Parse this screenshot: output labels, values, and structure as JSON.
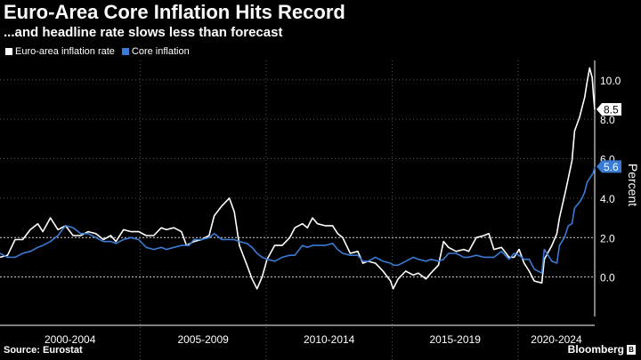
{
  "header": {
    "title": "Euro-Area Core Inflation Hits Record",
    "subtitle": "...and headline rate slows less than forecast"
  },
  "footer": {
    "source": "Source: Eurostat",
    "brand": "Bloomberg"
  },
  "colors": {
    "headline": "#ffffff",
    "core": "#3a7bd5",
    "background": "#000000"
  },
  "chart_data": {
    "type": "line",
    "ylabel": "Percent",
    "ylim": [
      -2.0,
      10.8
    ],
    "yticks": [
      0.0,
      2.0,
      4.0,
      6.0,
      8.0,
      10.0
    ],
    "ytick_labels": [
      "0.0",
      "2.0",
      "4.0",
      "6.0",
      "8.0",
      "10.0"
    ],
    "xlim": [
      1999.4,
      2023.0
    ],
    "x_periods": [
      {
        "label": "2000-2004",
        "start": 1999.4,
        "end": 2004.96
      },
      {
        "label": "2005-2009",
        "start": 2004.96,
        "end": 2009.96
      },
      {
        "label": "2010-2014",
        "start": 2009.96,
        "end": 2014.96
      },
      {
        "label": "2015-2019",
        "start": 2014.96,
        "end": 2019.96
      },
      {
        "label": "2020-2024",
        "start": 2019.96,
        "end": 2023.0
      }
    ],
    "grid": true,
    "legend_position": "top-left",
    "series": [
      {
        "name": "Euro-area inflation rate",
        "color": "#ffffff",
        "last_label": "8.5",
        "points": [
          [
            1999.4,
            1.0
          ],
          [
            1999.7,
            1.1
          ],
          [
            2000.0,
            1.9
          ],
          [
            2000.3,
            1.9
          ],
          [
            2000.6,
            2.4
          ],
          [
            2000.9,
            2.7
          ],
          [
            2001.1,
            2.3
          ],
          [
            2001.4,
            3.0
          ],
          [
            2001.7,
            2.4
          ],
          [
            2002.0,
            2.6
          ],
          [
            2002.3,
            2.1
          ],
          [
            2002.6,
            2.1
          ],
          [
            2002.9,
            2.3
          ],
          [
            2003.2,
            2.2
          ],
          [
            2003.5,
            1.9
          ],
          [
            2003.8,
            2.1
          ],
          [
            2004.0,
            1.8
          ],
          [
            2004.3,
            2.4
          ],
          [
            2004.6,
            2.3
          ],
          [
            2004.9,
            2.3
          ],
          [
            2005.2,
            2.1
          ],
          [
            2005.5,
            2.1
          ],
          [
            2005.8,
            2.5
          ],
          [
            2006.0,
            2.4
          ],
          [
            2006.3,
            2.5
          ],
          [
            2006.6,
            2.3
          ],
          [
            2006.8,
            1.6
          ],
          [
            2007.1,
            1.8
          ],
          [
            2007.4,
            1.9
          ],
          [
            2007.7,
            2.1
          ],
          [
            2007.9,
            3.1
          ],
          [
            2008.2,
            3.6
          ],
          [
            2008.5,
            4.0
          ],
          [
            2008.7,
            3.3
          ],
          [
            2008.9,
            1.6
          ],
          [
            2009.2,
            0.6
          ],
          [
            2009.4,
            -0.1
          ],
          [
            2009.6,
            -0.6
          ],
          [
            2009.8,
            0.0
          ],
          [
            2010.0,
            0.9
          ],
          [
            2010.3,
            1.6
          ],
          [
            2010.6,
            1.6
          ],
          [
            2010.9,
            2.0
          ],
          [
            2011.1,
            2.5
          ],
          [
            2011.4,
            2.7
          ],
          [
            2011.6,
            2.5
          ],
          [
            2011.8,
            3.0
          ],
          [
            2012.0,
            2.7
          ],
          [
            2012.3,
            2.6
          ],
          [
            2012.6,
            2.6
          ],
          [
            2012.8,
            2.2
          ],
          [
            2013.0,
            2.0
          ],
          [
            2013.3,
            1.2
          ],
          [
            2013.6,
            1.3
          ],
          [
            2013.8,
            0.7
          ],
          [
            2014.0,
            0.8
          ],
          [
            2014.3,
            0.7
          ],
          [
            2014.6,
            0.3
          ],
          [
            2014.9,
            -0.2
          ],
          [
            2015.0,
            -0.6
          ],
          [
            2015.2,
            -0.1
          ],
          [
            2015.5,
            0.3
          ],
          [
            2015.8,
            0.1
          ],
          [
            2016.0,
            0.2
          ],
          [
            2016.3,
            -0.1
          ],
          [
            2016.5,
            0.2
          ],
          [
            2016.8,
            0.6
          ],
          [
            2017.0,
            1.8
          ],
          [
            2017.2,
            1.5
          ],
          [
            2017.5,
            1.3
          ],
          [
            2017.8,
            1.4
          ],
          [
            2018.0,
            1.3
          ],
          [
            2018.3,
            2.0
          ],
          [
            2018.6,
            2.1
          ],
          [
            2018.8,
            2.2
          ],
          [
            2019.0,
            1.4
          ],
          [
            2019.3,
            1.5
          ],
          [
            2019.6,
            1.0
          ],
          [
            2019.8,
            1.0
          ],
          [
            2020.0,
            1.4
          ],
          [
            2020.2,
            0.7
          ],
          [
            2020.4,
            0.3
          ],
          [
            2020.6,
            -0.2
          ],
          [
            2020.9,
            -0.3
          ],
          [
            2021.0,
            0.9
          ],
          [
            2021.3,
            1.6
          ],
          [
            2021.5,
            2.2
          ],
          [
            2021.6,
            3.0
          ],
          [
            2021.8,
            4.1
          ],
          [
            2021.95,
            5.0
          ],
          [
            2022.1,
            5.9
          ],
          [
            2022.2,
            7.4
          ],
          [
            2022.4,
            8.1
          ],
          [
            2022.5,
            8.6
          ],
          [
            2022.6,
            9.1
          ],
          [
            2022.7,
            9.9
          ],
          [
            2022.8,
            10.6
          ],
          [
            2022.9,
            10.1
          ],
          [
            2022.95,
            9.2
          ],
          [
            2023.0,
            8.5
          ]
        ]
      },
      {
        "name": "Core inflation",
        "color": "#3a7bd5",
        "last_label": "5.6",
        "points": [
          [
            1999.4,
            1.2
          ],
          [
            1999.7,
            1.0
          ],
          [
            2000.0,
            1.0
          ],
          [
            2000.3,
            1.2
          ],
          [
            2000.6,
            1.3
          ],
          [
            2000.9,
            1.5
          ],
          [
            2001.1,
            1.6
          ],
          [
            2001.4,
            1.8
          ],
          [
            2001.7,
            2.1
          ],
          [
            2002.0,
            2.6
          ],
          [
            2002.3,
            2.5
          ],
          [
            2002.6,
            2.2
          ],
          [
            2002.9,
            2.2
          ],
          [
            2003.2,
            2.0
          ],
          [
            2003.5,
            1.8
          ],
          [
            2003.8,
            1.8
          ],
          [
            2004.0,
            1.7
          ],
          [
            2004.3,
            1.9
          ],
          [
            2004.6,
            2.0
          ],
          [
            2004.9,
            1.9
          ],
          [
            2005.2,
            1.5
          ],
          [
            2005.5,
            1.4
          ],
          [
            2005.8,
            1.5
          ],
          [
            2006.0,
            1.4
          ],
          [
            2006.3,
            1.5
          ],
          [
            2006.6,
            1.6
          ],
          [
            2006.9,
            1.6
          ],
          [
            2007.1,
            1.9
          ],
          [
            2007.4,
            1.9
          ],
          [
            2007.7,
            2.0
          ],
          [
            2007.9,
            2.2
          ],
          [
            2008.2,
            1.9
          ],
          [
            2008.5,
            1.9
          ],
          [
            2008.7,
            1.9
          ],
          [
            2008.9,
            1.8
          ],
          [
            2009.2,
            1.7
          ],
          [
            2009.4,
            1.5
          ],
          [
            2009.6,
            1.2
          ],
          [
            2009.8,
            1.0
          ],
          [
            2010.0,
            0.9
          ],
          [
            2010.3,
            0.8
          ],
          [
            2010.6,
            1.0
          ],
          [
            2010.9,
            1.1
          ],
          [
            2011.1,
            1.1
          ],
          [
            2011.4,
            1.6
          ],
          [
            2011.6,
            1.5
          ],
          [
            2011.8,
            1.6
          ],
          [
            2012.0,
            1.6
          ],
          [
            2012.3,
            1.6
          ],
          [
            2012.6,
            1.7
          ],
          [
            2012.8,
            1.4
          ],
          [
            2013.0,
            1.2
          ],
          [
            2013.3,
            1.1
          ],
          [
            2013.6,
            1.1
          ],
          [
            2013.8,
            0.8
          ],
          [
            2014.0,
            0.8
          ],
          [
            2014.3,
            1.0
          ],
          [
            2014.6,
            0.8
          ],
          [
            2014.9,
            0.7
          ],
          [
            2015.0,
            0.6
          ],
          [
            2015.2,
            0.6
          ],
          [
            2015.5,
            0.8
          ],
          [
            2015.8,
            1.0
          ],
          [
            2016.0,
            0.9
          ],
          [
            2016.3,
            0.8
          ],
          [
            2016.5,
            0.9
          ],
          [
            2016.8,
            0.8
          ],
          [
            2017.0,
            0.9
          ],
          [
            2017.2,
            1.2
          ],
          [
            2017.5,
            1.2
          ],
          [
            2017.8,
            1.0
          ],
          [
            2018.0,
            1.0
          ],
          [
            2018.3,
            1.1
          ],
          [
            2018.6,
            1.0
          ],
          [
            2018.8,
            1.0
          ],
          [
            2019.0,
            1.0
          ],
          [
            2019.3,
            1.3
          ],
          [
            2019.6,
            0.9
          ],
          [
            2019.8,
            1.2
          ],
          [
            2020.0,
            1.1
          ],
          [
            2020.2,
            0.9
          ],
          [
            2020.4,
            0.9
          ],
          [
            2020.6,
            0.4
          ],
          [
            2020.9,
            0.2
          ],
          [
            2021.0,
            1.4
          ],
          [
            2021.3,
            0.8
          ],
          [
            2021.5,
            0.7
          ],
          [
            2021.6,
            1.6
          ],
          [
            2021.8,
            2.0
          ],
          [
            2021.95,
            2.6
          ],
          [
            2022.1,
            2.7
          ],
          [
            2022.2,
            3.5
          ],
          [
            2022.4,
            3.8
          ],
          [
            2022.5,
            4.0
          ],
          [
            2022.6,
            4.3
          ],
          [
            2022.7,
            4.8
          ],
          [
            2022.8,
            5.0
          ],
          [
            2022.9,
            5.2
          ],
          [
            2022.95,
            5.3
          ],
          [
            2023.0,
            5.6
          ]
        ]
      }
    ]
  }
}
